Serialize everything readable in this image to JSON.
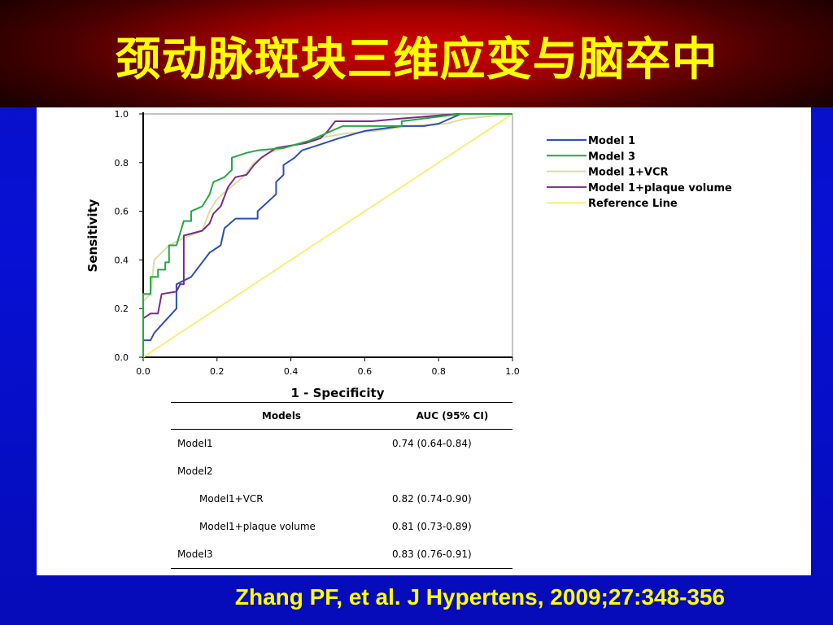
{
  "slide": {
    "title": "颈动脉斑块三维应变与脑卒中",
    "citation": "Zhang PF, et al. J Hypertens, 2009;27:348-356"
  },
  "chart_data": {
    "type": "line",
    "xlabel": "1 - Specificity",
    "ylabel": "Sensitivity",
    "xlim": [
      0,
      1
    ],
    "ylim": [
      0,
      1
    ],
    "x_ticks": [
      "0.0",
      "0.2",
      "0.4",
      "0.6",
      "0.8",
      "1.0"
    ],
    "y_ticks": [
      "0.0",
      "0.2",
      "0.4",
      "0.6",
      "0.8",
      "1.0"
    ],
    "legend_position": "right",
    "series": [
      {
        "name": "Model 1",
        "color": "#2b4fb5",
        "points": [
          [
            0,
            0
          ],
          [
            0,
            0.07
          ],
          [
            0.02,
            0.07
          ],
          [
            0.03,
            0.1
          ],
          [
            0.09,
            0.2
          ],
          [
            0.09,
            0.3
          ],
          [
            0.13,
            0.33
          ],
          [
            0.18,
            0.43
          ],
          [
            0.21,
            0.46
          ],
          [
            0.22,
            0.53
          ],
          [
            0.25,
            0.57
          ],
          [
            0.31,
            0.57
          ],
          [
            0.31,
            0.6
          ],
          [
            0.36,
            0.67
          ],
          [
            0.36,
            0.72
          ],
          [
            0.38,
            0.75
          ],
          [
            0.38,
            0.79
          ],
          [
            0.41,
            0.82
          ],
          [
            0.43,
            0.85
          ],
          [
            0.47,
            0.87
          ],
          [
            0.53,
            0.9
          ],
          [
            0.6,
            0.93
          ],
          [
            0.7,
            0.95
          ],
          [
            0.76,
            0.95
          ],
          [
            0.8,
            0.96
          ],
          [
            0.86,
            1.0
          ],
          [
            1.0,
            1.0
          ]
        ]
      },
      {
        "name": "Model 3",
        "color": "#22aa44",
        "points": [
          [
            0,
            0
          ],
          [
            0,
            0.26
          ],
          [
            0.02,
            0.26
          ],
          [
            0.02,
            0.33
          ],
          [
            0.04,
            0.33
          ],
          [
            0.04,
            0.36
          ],
          [
            0.06,
            0.36
          ],
          [
            0.06,
            0.39
          ],
          [
            0.07,
            0.39
          ],
          [
            0.07,
            0.46
          ],
          [
            0.09,
            0.46
          ],
          [
            0.11,
            0.56
          ],
          [
            0.13,
            0.56
          ],
          [
            0.13,
            0.6
          ],
          [
            0.16,
            0.62
          ],
          [
            0.18,
            0.67
          ],
          [
            0.19,
            0.72
          ],
          [
            0.22,
            0.74
          ],
          [
            0.24,
            0.77
          ],
          [
            0.24,
            0.82
          ],
          [
            0.28,
            0.84
          ],
          [
            0.31,
            0.85
          ],
          [
            0.38,
            0.86
          ],
          [
            0.45,
            0.89
          ],
          [
            0.54,
            0.95
          ],
          [
            0.7,
            0.95
          ],
          [
            0.7,
            0.97
          ],
          [
            0.86,
            1.0
          ],
          [
            1.0,
            1.0
          ]
        ]
      },
      {
        "name": "Model 1+VCR",
        "color": "#e0dca0",
        "points": [
          [
            0,
            0
          ],
          [
            0,
            0.23
          ],
          [
            0.02,
            0.26
          ],
          [
            0.03,
            0.4
          ],
          [
            0.05,
            0.43
          ],
          [
            0.07,
            0.46
          ],
          [
            0.11,
            0.49
          ],
          [
            0.16,
            0.52
          ],
          [
            0.18,
            0.6
          ],
          [
            0.2,
            0.65
          ],
          [
            0.23,
            0.69
          ],
          [
            0.27,
            0.74
          ],
          [
            0.3,
            0.8
          ],
          [
            0.34,
            0.84
          ],
          [
            0.4,
            0.87
          ],
          [
            0.47,
            0.9
          ],
          [
            0.55,
            0.92
          ],
          [
            0.63,
            0.93
          ],
          [
            0.72,
            0.95
          ],
          [
            0.82,
            0.96
          ],
          [
            0.87,
            0.98
          ],
          [
            1.0,
            1.0
          ]
        ]
      },
      {
        "name": "Model 1+plaque volume",
        "color": "#7a2a8a",
        "points": [
          [
            0,
            0
          ],
          [
            0,
            0.16
          ],
          [
            0.02,
            0.18
          ],
          [
            0.04,
            0.18
          ],
          [
            0.05,
            0.26
          ],
          [
            0.09,
            0.27
          ],
          [
            0.1,
            0.3
          ],
          [
            0.11,
            0.3
          ],
          [
            0.11,
            0.5
          ],
          [
            0.16,
            0.52
          ],
          [
            0.18,
            0.55
          ],
          [
            0.19,
            0.59
          ],
          [
            0.21,
            0.62
          ],
          [
            0.23,
            0.7
          ],
          [
            0.25,
            0.74
          ],
          [
            0.28,
            0.75
          ],
          [
            0.3,
            0.79
          ],
          [
            0.32,
            0.82
          ],
          [
            0.36,
            0.86
          ],
          [
            0.44,
            0.88
          ],
          [
            0.48,
            0.9
          ],
          [
            0.5,
            0.93
          ],
          [
            0.52,
            0.97
          ],
          [
            0.62,
            0.97
          ],
          [
            0.69,
            0.98
          ],
          [
            0.85,
            1.0
          ],
          [
            1.0,
            1.0
          ]
        ]
      },
      {
        "name": "Reference Line",
        "color": "#f5f07a",
        "points": [
          [
            0,
            0
          ],
          [
            1,
            1
          ]
        ]
      }
    ]
  },
  "auc_table": {
    "headers": [
      "Models",
      "AUC (95% CI)"
    ],
    "rows": [
      {
        "model": "Model1",
        "auc": "0.74 (0.64-0.84)",
        "indent": false
      },
      {
        "model": "Model2",
        "auc": "",
        "indent": false
      },
      {
        "model": "Model1+VCR",
        "auc": "0.82 (0.74-0.90)",
        "indent": true
      },
      {
        "model": "Model1+plaque volume",
        "auc": "0.81 (0.73-0.89)",
        "indent": true
      },
      {
        "model": "Model3",
        "auc": "0.83 (0.76-0.91)",
        "indent": false
      }
    ]
  }
}
